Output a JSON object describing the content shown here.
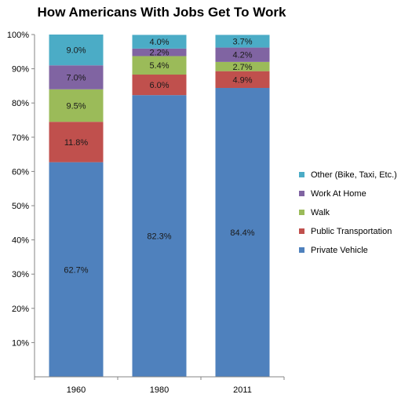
{
  "chart_data": {
    "type": "bar",
    "stacked": true,
    "title": "How Americans With Jobs Get To Work",
    "xlabel": "",
    "ylabel": "",
    "categories": [
      "1960",
      "1980",
      "2011"
    ],
    "ylim": [
      0,
      100
    ],
    "y_ticks": [
      "10%",
      "20%",
      "30%",
      "40%",
      "50%",
      "60%",
      "70%",
      "80%",
      "90%",
      "100%"
    ],
    "grid": false,
    "legend_position": "right",
    "series": [
      {
        "name": "Private Vehicle",
        "color": "#4F81BD",
        "values": [
          62.7,
          82.3,
          84.4
        ],
        "labels": [
          "62.7%",
          "82.3%",
          "84.4%"
        ]
      },
      {
        "name": "Public Transportation",
        "color": "#C0504D",
        "values": [
          11.8,
          6.0,
          4.9
        ],
        "labels": [
          "11.8%",
          "6.0%",
          "4.9%"
        ]
      },
      {
        "name": "Walk",
        "color": "#9BBB59",
        "values": [
          9.5,
          5.4,
          2.7
        ],
        "labels": [
          "9.5%",
          "5.4%",
          "2.7%"
        ]
      },
      {
        "name": "Work At Home",
        "color": "#8064A2",
        "values": [
          7.0,
          2.2,
          4.2
        ],
        "labels": [
          "7.0%",
          "2.2%",
          "4.2%"
        ]
      },
      {
        "name": "Other (Bike, Taxi, Etc.)",
        "color": "#4BACC6",
        "values": [
          9.0,
          4.0,
          3.7
        ],
        "labels": [
          "9.0%",
          "4.0%",
          "3.7%"
        ]
      }
    ]
  }
}
